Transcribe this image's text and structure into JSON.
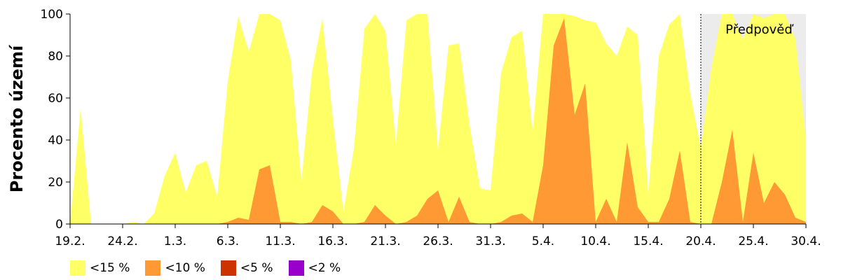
{
  "chart_data": {
    "type": "area",
    "ylabel": "Procento území",
    "ylim": [
      0,
      100
    ],
    "yticks": [
      0,
      20,
      40,
      60,
      80,
      100
    ],
    "xlim": [
      0,
      70
    ],
    "xticks": [
      {
        "x": 0,
        "label": "19.2."
      },
      {
        "x": 5,
        "label": "24.2."
      },
      {
        "x": 10,
        "label": "1.3."
      },
      {
        "x": 15,
        "label": "6.3."
      },
      {
        "x": 20,
        "label": "11.3."
      },
      {
        "x": 25,
        "label": "16.3."
      },
      {
        "x": 30,
        "label": "21.3."
      },
      {
        "x": 35,
        "label": "26.3."
      },
      {
        "x": 40,
        "label": "31.3."
      },
      {
        "x": 45,
        "label": "5.4."
      },
      {
        "x": 50,
        "label": "10.4."
      },
      {
        "x": 55,
        "label": "15.4."
      },
      {
        "x": 60,
        "label": "20.4."
      },
      {
        "x": 65,
        "label": "25.4."
      },
      {
        "x": 70,
        "label": "30.4."
      }
    ],
    "forecast": {
      "start_x": 60,
      "end_x": 70,
      "label": "Předpověď",
      "color": "#ececec"
    },
    "series": [
      {
        "name": "<15 %",
        "color": "#ffff66",
        "points": [
          [
            0,
            0
          ],
          [
            1,
            55
          ],
          [
            2,
            0
          ],
          [
            3,
            0
          ],
          [
            4,
            0
          ],
          [
            5,
            0
          ],
          [
            6,
            1
          ],
          [
            7,
            0
          ],
          [
            8,
            5
          ],
          [
            9,
            23
          ],
          [
            10,
            34
          ],
          [
            11,
            15
          ],
          [
            12,
            28
          ],
          [
            13,
            30
          ],
          [
            14,
            13
          ],
          [
            15,
            68
          ],
          [
            16,
            99
          ],
          [
            17,
            82
          ],
          [
            18,
            100
          ],
          [
            19,
            100
          ],
          [
            20,
            97
          ],
          [
            21,
            78
          ],
          [
            22,
            20
          ],
          [
            23,
            72
          ],
          [
            24,
            98
          ],
          [
            25,
            50
          ],
          [
            26,
            6
          ],
          [
            27,
            36
          ],
          [
            28,
            93
          ],
          [
            29,
            100
          ],
          [
            30,
            92
          ],
          [
            31,
            38
          ],
          [
            32,
            97
          ],
          [
            33,
            100
          ],
          [
            34,
            100
          ],
          [
            35,
            35
          ],
          [
            36,
            85
          ],
          [
            37,
            86
          ],
          [
            38,
            47
          ],
          [
            39,
            17
          ],
          [
            40,
            16
          ],
          [
            41,
            72
          ],
          [
            42,
            89
          ],
          [
            43,
            92
          ],
          [
            44,
            44
          ],
          [
            45,
            100
          ],
          [
            46,
            100
          ],
          [
            47,
            100
          ],
          [
            48,
            99
          ],
          [
            49,
            97
          ],
          [
            50,
            96
          ],
          [
            51,
            86
          ],
          [
            52,
            80
          ],
          [
            53,
            94
          ],
          [
            54,
            90
          ],
          [
            55,
            14
          ],
          [
            56,
            80
          ],
          [
            57,
            95
          ],
          [
            58,
            100
          ],
          [
            59,
            62
          ],
          [
            60,
            36
          ],
          [
            61,
            74
          ],
          [
            62,
            100
          ],
          [
            63,
            100
          ],
          [
            64,
            88
          ],
          [
            65,
            100
          ],
          [
            66,
            98
          ],
          [
            67,
            100
          ],
          [
            68,
            100
          ],
          [
            69,
            88
          ],
          [
            70,
            40
          ]
        ]
      },
      {
        "name": "<10 %",
        "color": "#ff9933",
        "points": [
          [
            0,
            0
          ],
          [
            14,
            0
          ],
          [
            15,
            1
          ],
          [
            16,
            3
          ],
          [
            17,
            2
          ],
          [
            18,
            26
          ],
          [
            19,
            28
          ],
          [
            20,
            1
          ],
          [
            21,
            1
          ],
          [
            22,
            0
          ],
          [
            23,
            1
          ],
          [
            24,
            9
          ],
          [
            25,
            6
          ],
          [
            26,
            0
          ],
          [
            27,
            0
          ],
          [
            28,
            1
          ],
          [
            29,
            9
          ],
          [
            30,
            4
          ],
          [
            31,
            0
          ],
          [
            32,
            1
          ],
          [
            33,
            4
          ],
          [
            34,
            12
          ],
          [
            35,
            16
          ],
          [
            36,
            1
          ],
          [
            37,
            13
          ],
          [
            38,
            1
          ],
          [
            39,
            0
          ],
          [
            40,
            0
          ],
          [
            41,
            1
          ],
          [
            42,
            4
          ],
          [
            43,
            5
          ],
          [
            44,
            1
          ],
          [
            45,
            28
          ],
          [
            46,
            85
          ],
          [
            47,
            98
          ],
          [
            48,
            52
          ],
          [
            49,
            67
          ],
          [
            50,
            1
          ],
          [
            51,
            12
          ],
          [
            52,
            1
          ],
          [
            53,
            39
          ],
          [
            54,
            8
          ],
          [
            55,
            1
          ],
          [
            56,
            1
          ],
          [
            57,
            12
          ],
          [
            58,
            35
          ],
          [
            59,
            1
          ],
          [
            60,
            0
          ],
          [
            61,
            0
          ],
          [
            62,
            20
          ],
          [
            63,
            45
          ],
          [
            64,
            1
          ],
          [
            65,
            34
          ],
          [
            66,
            10
          ],
          [
            67,
            20
          ],
          [
            68,
            14
          ],
          [
            69,
            3
          ],
          [
            70,
            1
          ]
        ]
      },
      {
        "name": "<5 %",
        "color": "#cc3300",
        "points": [
          [
            0,
            0
          ],
          [
            70,
            0
          ]
        ]
      },
      {
        "name": "<2 %",
        "color": "#9900cc",
        "points": [
          [
            0,
            0
          ],
          [
            70,
            0
          ]
        ]
      }
    ],
    "grid": false,
    "legend_position": "bottom-left"
  }
}
